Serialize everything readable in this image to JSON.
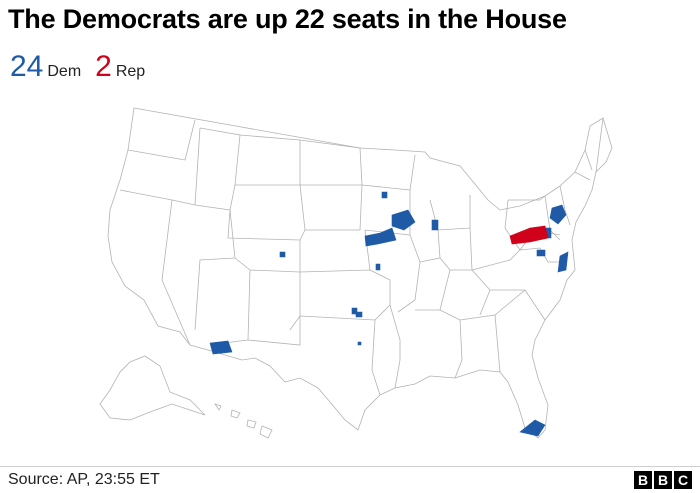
{
  "headline": "The Democrats are up 22 seats in the House",
  "tally": {
    "dem_count": "24",
    "dem_label": "Dem",
    "rep_count": "2",
    "rep_label": "Rep"
  },
  "colors": {
    "democrat": "#1f5aa6",
    "republican": "#d0021b",
    "land": "#ffffff",
    "border": "#b3b3b3"
  },
  "footer": {
    "source": "Source: AP, 23:55 ET",
    "logo_letters": [
      "B",
      "B",
      "C"
    ]
  }
}
